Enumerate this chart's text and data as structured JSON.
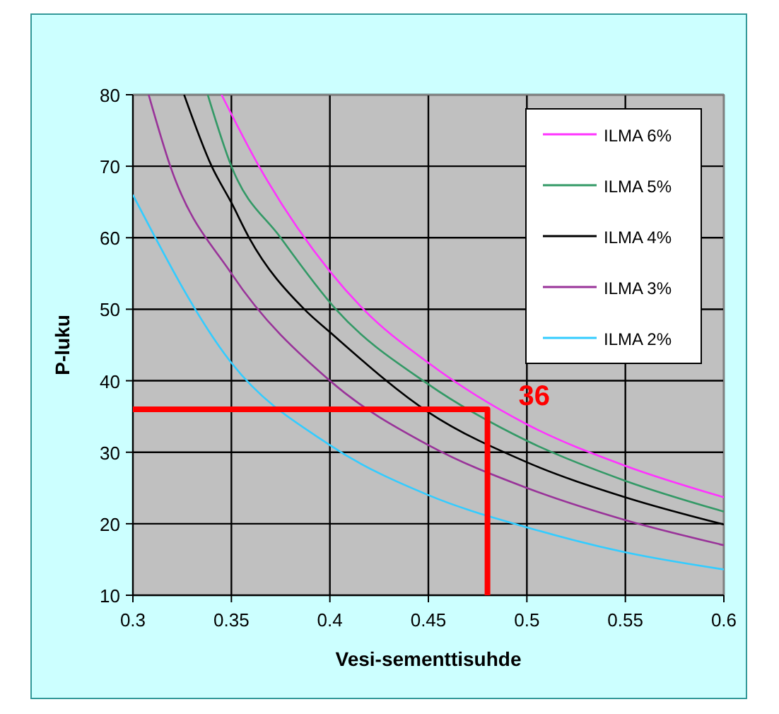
{
  "chart_data": {
    "type": "line",
    "xlabel": "Vesi-sementtisuhde",
    "ylabel": "P-luku",
    "xlim": [
      0.3,
      0.6
    ],
    "xticks": [
      {
        "value": 0.3,
        "label": "0.3"
      },
      {
        "value": 0.35,
        "label": "0.35"
      },
      {
        "value": 0.4,
        "label": "0.4"
      },
      {
        "value": 0.45,
        "label": "0.45"
      },
      {
        "value": 0.5,
        "label": "0.5"
      },
      {
        "value": 0.55,
        "label": "0.55"
      },
      {
        "value": 0.6,
        "label": "0.6"
      }
    ],
    "ylim": [
      10,
      80
    ],
    "yticks": [
      10,
      20,
      30,
      40,
      50,
      60,
      70,
      80
    ],
    "grid": true,
    "legend": "top right",
    "line_style": "solid",
    "series": [
      {
        "name": "ILMA 6%",
        "color": "#ff33ff",
        "x": [
          0.345,
          0.364,
          0.4,
          0.417,
          0.45,
          0.5,
          0.55,
          0.6
        ],
        "values": [
          80,
          70,
          55.3,
          50,
          42.5,
          33.9,
          28.1,
          23.7
        ]
      },
      {
        "name": "ILMA 5%",
        "color": "#339966",
        "x": [
          0.338,
          0.35,
          0.375,
          0.403,
          0.45,
          0.5,
          0.55,
          0.6
        ],
        "values": [
          80,
          70,
          60,
          50,
          39.5,
          31.6,
          26,
          21.7
        ]
      },
      {
        "name": "ILMA 4%",
        "color": "#000000",
        "x": [
          0.326,
          0.34,
          0.35,
          0.359,
          0.387,
          0.4,
          0.45,
          0.5,
          0.55,
          0.6
        ],
        "values": [
          80,
          70,
          64.9,
          60,
          50,
          46.8,
          35.6,
          28.6,
          23.7,
          19.9
        ]
      },
      {
        "name": "ILMA 3%",
        "color": "#993399",
        "x": [
          0.308,
          0.319,
          0.35,
          0.4,
          0.45,
          0.5,
          0.55,
          0.6
        ],
        "values": [
          80,
          70,
          55,
          40,
          31,
          25,
          20.5,
          17
        ]
      },
      {
        "name": "ILMA 2%",
        "color": "#33ccff",
        "x": [
          0.3,
          0.35,
          0.4,
          0.45,
          0.5,
          0.55,
          0.6
        ],
        "values": [
          66,
          42.5,
          31,
          24,
          19.5,
          16,
          13.6
        ]
      },
      {
        "color": "#ff0000",
        "x": [
          0.3,
          0.48,
          0.48
        ],
        "values": [
          36,
          36,
          10
        ]
      }
    ],
    "annotations": [
      {
        "text": "36",
        "x": 0.48,
        "y": 36
      }
    ]
  }
}
